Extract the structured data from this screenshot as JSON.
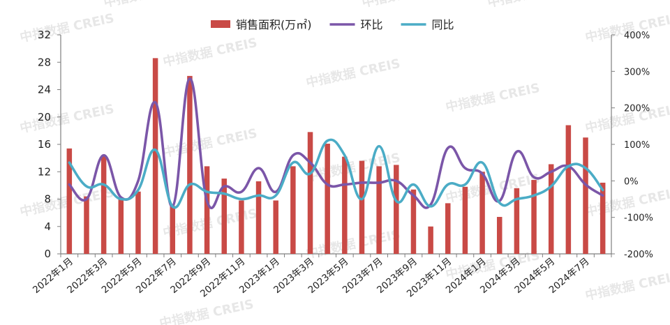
{
  "watermark_text": "中指数据 CREIS",
  "chart_data": {
    "type": "bar+line",
    "categories": [
      "2022年1月",
      "2022年2月",
      "2022年3月",
      "2022年4月",
      "2022年5月",
      "2022年6月",
      "2022年7月",
      "2022年8月",
      "2022年9月",
      "2022年10月",
      "2022年11月",
      "2022年12月",
      "2023年1月",
      "2023年2月",
      "2023年3月",
      "2023年4月",
      "2023年5月",
      "2023年6月",
      "2023年7月",
      "2023年8月",
      "2023年9月",
      "2023年10月",
      "2023年11月",
      "2023年12月",
      "2024年1月",
      "2024年2月",
      "2024年3月",
      "2024年4月",
      "2024年5月",
      "2024年6月",
      "2024年7月",
      "2024年8月"
    ],
    "tick_labels": [
      "2022年1月",
      "",
      "2022年3月",
      "",
      "2022年5月",
      "",
      "2022年7月",
      "",
      "2022年9月",
      "",
      "2022年11月",
      "",
      "2023年1月",
      "",
      "2023年3月",
      "",
      "2023年5月",
      "",
      "2023年7月",
      "",
      "2023年9月",
      "",
      "2023年11月",
      "",
      "2024年1月",
      "",
      "2024年3月",
      "",
      "2024年5月",
      "",
      "2024年7月",
      ""
    ],
    "series": [
      {
        "name": "销售面积(万㎡)",
        "kind": "bar",
        "axis": "left",
        "color": "#c94a46",
        "values": [
          15.4,
          8.4,
          14.3,
          8.1,
          9.1,
          28.6,
          7.0,
          26.0,
          12.8,
          11.0,
          7.8,
          10.6,
          7.8,
          12.8,
          17.8,
          16.1,
          14.2,
          13.6,
          12.8,
          13.0,
          9.4,
          4.0,
          7.4,
          9.8,
          12.0,
          5.4,
          9.6,
          10.8,
          13.1,
          18.8,
          17.0,
          10.4
        ]
      },
      {
        "name": "环比",
        "kind": "line",
        "axis": "right",
        "color": "#7b56a8",
        "values": [
          -10,
          -50,
          70,
          -45,
          0,
          215,
          -70,
          280,
          -55,
          -15,
          -30,
          35,
          -30,
          70,
          50,
          -10,
          -10,
          -5,
          -5,
          0,
          -40,
          -65,
          90,
          35,
          20,
          -55,
          80,
          10,
          25,
          40,
          -10,
          -40
        ]
      },
      {
        "name": "同比",
        "kind": "line",
        "axis": "right",
        "color": "#4bacc6",
        "values": [
          50,
          -15,
          -10,
          -50,
          -25,
          85,
          -70,
          -10,
          -30,
          -35,
          -50,
          -40,
          -40,
          50,
          20,
          110,
          70,
          -50,
          95,
          -55,
          -10,
          -70,
          -10,
          -10,
          50,
          -60,
          -50,
          -40,
          -15,
          40,
          35,
          -25
        ]
      }
    ],
    "y_left": {
      "min": 0,
      "max": 32,
      "step": 4,
      "tick_labels": [
        "0",
        "4",
        "8",
        "12",
        "16",
        "20",
        "24",
        "28",
        "32"
      ]
    },
    "y_right": {
      "min": -200,
      "max": 400,
      "step": 100,
      "tick_labels": [
        "-200%",
        "-100%",
        "0%",
        "100%",
        "200%",
        "300%",
        "400%"
      ]
    },
    "legend": {
      "position": "top-center"
    },
    "grid": false
  }
}
